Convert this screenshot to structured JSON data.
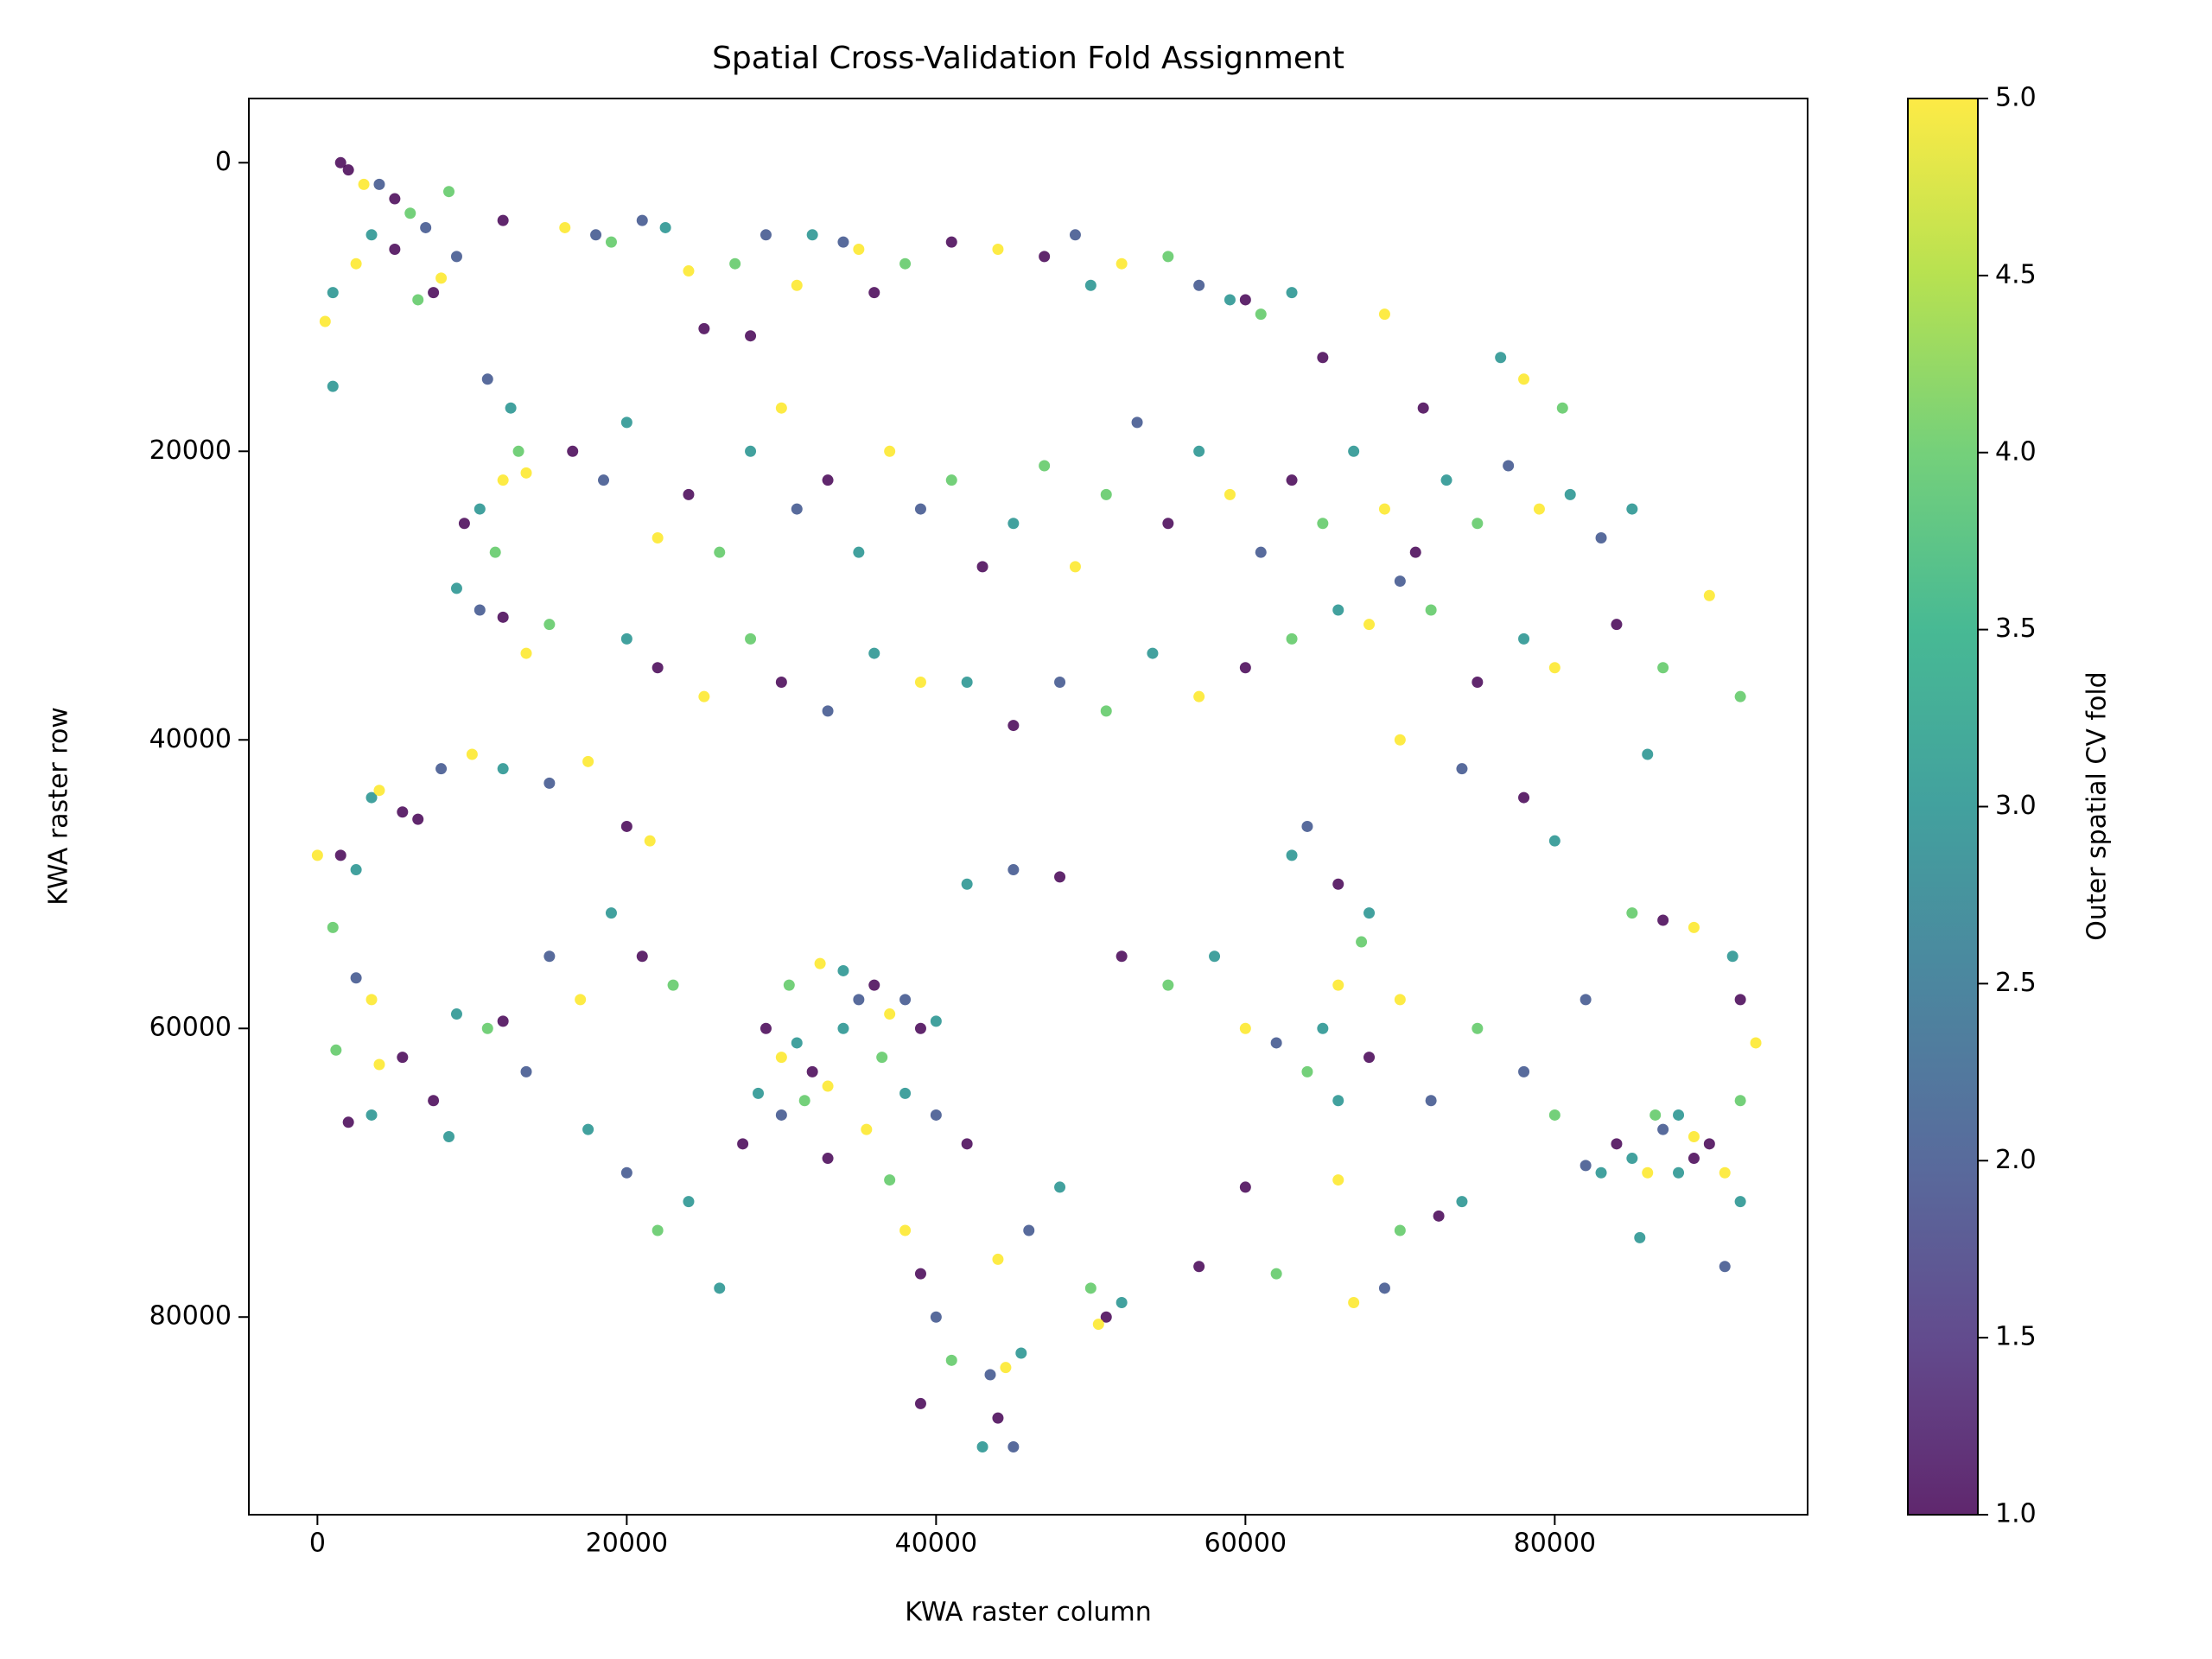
{
  "chart_data": {
    "type": "scatter",
    "title": "Spatial Cross-Validation Fold Assignment",
    "x_label": "KWA raster column",
    "y_label": "KWA raster row",
    "colorbar_label": "Outer spatial CV fold",
    "colormap": "viridis",
    "y_inverted": true,
    "xlim": [
      -4434,
      96350
    ],
    "ylim": [
      93700,
      -4450
    ],
    "xticks": [
      0,
      20000,
      40000,
      60000,
      80000
    ],
    "yticks": [
      0,
      20000,
      40000,
      60000,
      80000
    ],
    "clim": [
      1,
      5
    ],
    "cticks": [
      {
        "value": 1,
        "label": "1.0"
      },
      {
        "value": 1.5,
        "label": "1.5"
      },
      {
        "value": 2,
        "label": "2.0"
      },
      {
        "value": 2.5,
        "label": "2.5"
      },
      {
        "value": 3,
        "label": "3.0"
      },
      {
        "value": 3.5,
        "label": "3.5"
      },
      {
        "value": 4,
        "label": "4.0"
      },
      {
        "value": 4.5,
        "label": "4.5"
      },
      {
        "value": 5,
        "label": "5.0"
      }
    ],
    "points": [
      [
        1500,
        0,
        1
      ],
      [
        2000,
        500,
        1
      ],
      [
        3000,
        1500,
        5
      ],
      [
        4000,
        1500,
        2
      ],
      [
        5000,
        2500,
        1
      ],
      [
        6000,
        3500,
        4
      ],
      [
        7000,
        4500,
        2
      ],
      [
        8000,
        8000,
        5
      ],
      [
        7500,
        9000,
        1
      ],
      [
        6500,
        9500,
        4
      ],
      [
        3500,
        5000,
        3
      ],
      [
        5000,
        6000,
        1
      ],
      [
        9000,
        6500,
        2
      ],
      [
        1000,
        9000,
        3
      ],
      [
        500,
        11000,
        5
      ],
      [
        1000,
        15500,
        3
      ],
      [
        2500,
        7000,
        5
      ],
      [
        8500,
        2000,
        4
      ],
      [
        12000,
        4000,
        1
      ],
      [
        16000,
        4500,
        5
      ],
      [
        18000,
        5000,
        2
      ],
      [
        19000,
        5500,
        4
      ],
      [
        21000,
        4000,
        2
      ],
      [
        22500,
        4500,
        3
      ],
      [
        24000,
        7500,
        5
      ],
      [
        25000,
        11500,
        1
      ],
      [
        27000,
        7000,
        4
      ],
      [
        28000,
        12000,
        1
      ],
      [
        29000,
        5000,
        2
      ],
      [
        31000,
        8500,
        5
      ],
      [
        32000,
        5000,
        3
      ],
      [
        34000,
        5500,
        2
      ],
      [
        35000,
        6000,
        5
      ],
      [
        36000,
        9000,
        1
      ],
      [
        38000,
        7000,
        4
      ],
      [
        41000,
        5500,
        1
      ],
      [
        44000,
        6000,
        5
      ],
      [
        47000,
        6500,
        1
      ],
      [
        49000,
        5000,
        2
      ],
      [
        50000,
        8500,
        3
      ],
      [
        52000,
        7000,
        5
      ],
      [
        55000,
        6500,
        4
      ],
      [
        57000,
        8500,
        2
      ],
      [
        59000,
        9500,
        3
      ],
      [
        60000,
        9500,
        1
      ],
      [
        61000,
        10500,
        4
      ],
      [
        63000,
        9000,
        3
      ],
      [
        65000,
        13500,
        1
      ],
      [
        69000,
        10500,
        5
      ],
      [
        76500,
        13500,
        3
      ],
      [
        78000,
        15000,
        5
      ],
      [
        80500,
        17000,
        4
      ],
      [
        71500,
        17000,
        1
      ],
      [
        11000,
        15000,
        2
      ],
      [
        12500,
        17000,
        3
      ],
      [
        13000,
        20000,
        4
      ],
      [
        12000,
        22000,
        5
      ],
      [
        10500,
        24000,
        3
      ],
      [
        9500,
        25000,
        1
      ],
      [
        13500,
        21500,
        5
      ],
      [
        11500,
        27000,
        4
      ],
      [
        9000,
        29500,
        3
      ],
      [
        10500,
        31000,
        2
      ],
      [
        12000,
        31500,
        1
      ],
      [
        13500,
        34000,
        5
      ],
      [
        15000,
        32000,
        4
      ],
      [
        16500,
        20000,
        1
      ],
      [
        18500,
        22000,
        2
      ],
      [
        20000,
        18000,
        3
      ],
      [
        22000,
        26000,
        5
      ],
      [
        24000,
        23000,
        1
      ],
      [
        26000,
        27000,
        4
      ],
      [
        28000,
        20000,
        3
      ],
      [
        30000,
        17000,
        5
      ],
      [
        31000,
        24000,
        2
      ],
      [
        33000,
        22000,
        1
      ],
      [
        35000,
        27000,
        3
      ],
      [
        37000,
        20000,
        5
      ],
      [
        39000,
        24000,
        2
      ],
      [
        41000,
        22000,
        4
      ],
      [
        43000,
        28000,
        1
      ],
      [
        45000,
        25000,
        3
      ],
      [
        47000,
        21000,
        4
      ],
      [
        49000,
        28000,
        5
      ],
      [
        51000,
        23000,
        4
      ],
      [
        53000,
        18000,
        2
      ],
      [
        55000,
        25000,
        1
      ],
      [
        57000,
        20000,
        3
      ],
      [
        59000,
        23000,
        5
      ],
      [
        61000,
        27000,
        2
      ],
      [
        63000,
        22000,
        1
      ],
      [
        65000,
        25000,
        4
      ],
      [
        67000,
        20000,
        3
      ],
      [
        69000,
        24000,
        5
      ],
      [
        71000,
        27000,
        1
      ],
      [
        73000,
        22000,
        3
      ],
      [
        75000,
        25000,
        4
      ],
      [
        77000,
        21000,
        2
      ],
      [
        79000,
        24000,
        5
      ],
      [
        81000,
        23000,
        3
      ],
      [
        83000,
        26000,
        2
      ],
      [
        85000,
        24000,
        3
      ],
      [
        20000,
        33000,
        3
      ],
      [
        22000,
        35000,
        1
      ],
      [
        25000,
        37000,
        5
      ],
      [
        28000,
        33000,
        4
      ],
      [
        30000,
        36000,
        1
      ],
      [
        33000,
        38000,
        2
      ],
      [
        36000,
        34000,
        3
      ],
      [
        39000,
        36000,
        5
      ],
      [
        42000,
        36000,
        3
      ],
      [
        45000,
        39000,
        1
      ],
      [
        48000,
        36000,
        2
      ],
      [
        51000,
        38000,
        4
      ],
      [
        54000,
        34000,
        3
      ],
      [
        57000,
        37000,
        5
      ],
      [
        60000,
        35000,
        1
      ],
      [
        63000,
        33000,
        4
      ],
      [
        66000,
        31000,
        3
      ],
      [
        68000,
        32000,
        5
      ],
      [
        70000,
        29000,
        2
      ],
      [
        72000,
        31000,
        4
      ],
      [
        75000,
        36000,
        1
      ],
      [
        78000,
        33000,
        3
      ],
      [
        80000,
        35000,
        5
      ],
      [
        84000,
        32000,
        1
      ],
      [
        87000,
        35000,
        4
      ],
      [
        90000,
        30000,
        5
      ],
      [
        92000,
        37000,
        4
      ],
      [
        86000,
        41000,
        3
      ],
      [
        80000,
        47000,
        3
      ],
      [
        78000,
        44000,
        1
      ],
      [
        74000,
        42000,
        2
      ],
      [
        70000,
        40000,
        5
      ],
      [
        3500,
        44000,
        3
      ],
      [
        5500,
        45000,
        1
      ],
      [
        8000,
        42000,
        2
      ],
      [
        10000,
        41000,
        5
      ],
      [
        12000,
        42000,
        3
      ],
      [
        15000,
        43000,
        2
      ],
      [
        17500,
        41500,
        5
      ],
      [
        20000,
        46000,
        1
      ],
      [
        21500,
        47000,
        5
      ],
      [
        6500,
        45500,
        1
      ],
      [
        4000,
        43500,
        5
      ],
      [
        0,
        48000,
        5
      ],
      [
        1500,
        48000,
        1
      ],
      [
        2500,
        49000,
        3
      ],
      [
        1000,
        53000,
        4
      ],
      [
        2500,
        56500,
        2
      ],
      [
        3500,
        58000,
        5
      ],
      [
        1200,
        61500,
        4
      ],
      [
        3500,
        66000,
        3
      ],
      [
        2000,
        66500,
        1
      ],
      [
        4000,
        62500,
        5
      ],
      [
        5500,
        62000,
        1
      ],
      [
        9000,
        59000,
        3
      ],
      [
        11000,
        60000,
        4
      ],
      [
        12000,
        59500,
        1
      ],
      [
        13500,
        63000,
        2
      ],
      [
        8500,
        67500,
        3
      ],
      [
        7500,
        65000,
        1
      ],
      [
        15000,
        55000,
        2
      ],
      [
        17000,
        58000,
        5
      ],
      [
        19000,
        52000,
        3
      ],
      [
        21000,
        55000,
        1
      ],
      [
        23000,
        57000,
        4
      ],
      [
        17500,
        67000,
        3
      ],
      [
        20000,
        70000,
        2
      ],
      [
        22000,
        74000,
        4
      ],
      [
        24000,
        72000,
        3
      ],
      [
        26000,
        78000,
        3
      ],
      [
        29000,
        60000,
        1
      ],
      [
        30000,
        62000,
        5
      ],
      [
        31000,
        61000,
        3
      ],
      [
        32000,
        63000,
        1
      ],
      [
        33000,
        64000,
        5
      ],
      [
        31500,
        65000,
        4
      ],
      [
        30000,
        66000,
        2
      ],
      [
        34000,
        60000,
        3
      ],
      [
        35000,
        58000,
        2
      ],
      [
        36000,
        57000,
        1
      ],
      [
        37000,
        59000,
        5
      ],
      [
        38000,
        58000,
        2
      ],
      [
        39000,
        60000,
        1
      ],
      [
        40000,
        59500,
        3
      ],
      [
        36500,
        62000,
        4
      ],
      [
        38000,
        64500,
        3
      ],
      [
        35500,
        67000,
        5
      ],
      [
        33000,
        69000,
        1
      ],
      [
        37000,
        70500,
        4
      ],
      [
        40000,
        66000,
        2
      ],
      [
        42000,
        68000,
        1
      ],
      [
        32500,
        55500,
        5
      ],
      [
        34000,
        56000,
        3
      ],
      [
        30500,
        57000,
        4
      ],
      [
        28500,
        64500,
        3
      ],
      [
        27500,
        68000,
        1
      ],
      [
        38000,
        74000,
        5
      ],
      [
        39000,
        77000,
        1
      ],
      [
        40000,
        80000,
        2
      ],
      [
        41000,
        83000,
        4
      ],
      [
        43500,
        84000,
        2
      ],
      [
        44500,
        83500,
        5
      ],
      [
        45500,
        82500,
        3
      ],
      [
        44000,
        87000,
        1
      ],
      [
        43000,
        89000,
        3
      ],
      [
        45000,
        89000,
        2
      ],
      [
        39000,
        86000,
        1
      ],
      [
        44000,
        76000,
        5
      ],
      [
        46000,
        74000,
        2
      ],
      [
        48000,
        71000,
        3
      ],
      [
        50000,
        78000,
        4
      ],
      [
        51000,
        80000,
        1
      ],
      [
        52000,
        79000,
        3
      ],
      [
        50500,
        80500,
        5
      ],
      [
        42000,
        50000,
        3
      ],
      [
        45000,
        49000,
        2
      ],
      [
        48000,
        49500,
        1
      ],
      [
        52000,
        55000,
        1
      ],
      [
        55000,
        57000,
        4
      ],
      [
        58000,
        55000,
        3
      ],
      [
        60000,
        60000,
        5
      ],
      [
        62000,
        61000,
        2
      ],
      [
        63000,
        48000,
        3
      ],
      [
        64000,
        46000,
        2
      ],
      [
        66000,
        50000,
        1
      ],
      [
        68000,
        52000,
        3
      ],
      [
        67500,
        54000,
        4
      ],
      [
        66000,
        57000,
        5
      ],
      [
        65000,
        60000,
        3
      ],
      [
        64000,
        63000,
        4
      ],
      [
        66000,
        65000,
        3
      ],
      [
        68000,
        62000,
        1
      ],
      [
        70000,
        58000,
        5
      ],
      [
        72000,
        65000,
        2
      ],
      [
        74000,
        72000,
        3
      ],
      [
        70000,
        74000,
        4
      ],
      [
        72500,
        73000,
        1
      ],
      [
        75000,
        60000,
        4
      ],
      [
        78000,
        63000,
        2
      ],
      [
        80000,
        66000,
        4
      ],
      [
        82000,
        58000,
        2
      ],
      [
        85000,
        52000,
        4
      ],
      [
        87000,
        52500,
        1
      ],
      [
        89000,
        53000,
        5
      ],
      [
        91500,
        55000,
        3
      ],
      [
        92000,
        58000,
        1
      ],
      [
        93000,
        61000,
        5
      ],
      [
        92000,
        65000,
        4
      ],
      [
        84000,
        68000,
        1
      ],
      [
        85000,
        69000,
        3
      ],
      [
        86000,
        70000,
        5
      ],
      [
        87000,
        67000,
        2
      ],
      [
        88000,
        66000,
        3
      ],
      [
        89000,
        67500,
        5
      ],
      [
        90000,
        68000,
        1
      ],
      [
        86500,
        66000,
        4
      ],
      [
        88000,
        70000,
        3
      ],
      [
        91000,
        70000,
        5
      ],
      [
        83000,
        70000,
        3
      ],
      [
        82000,
        69500,
        2
      ],
      [
        85500,
        74500,
        3
      ],
      [
        91000,
        76500,
        2
      ],
      [
        92000,
        72000,
        3
      ],
      [
        89000,
        69000,
        1
      ],
      [
        57000,
        76500,
        1
      ],
      [
        62000,
        77000,
        4
      ],
      [
        60000,
        71000,
        1
      ],
      [
        66000,
        70500,
        5
      ],
      [
        67000,
        79000,
        5
      ],
      [
        69000,
        78000,
        2
      ]
    ]
  }
}
